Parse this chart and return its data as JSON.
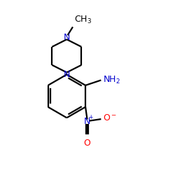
{
  "bg_color": "#ffffff",
  "bond_color": "#000000",
  "N_color": "#0000cd",
  "O_color": "#ff0000",
  "text_color": "#000000",
  "bond_lw": 1.6,
  "dbl_sep": 0.13,
  "figsize": [
    2.5,
    2.5
  ],
  "dpi": 100,
  "xlim": [
    0,
    10
  ],
  "ylim": [
    0,
    10
  ]
}
